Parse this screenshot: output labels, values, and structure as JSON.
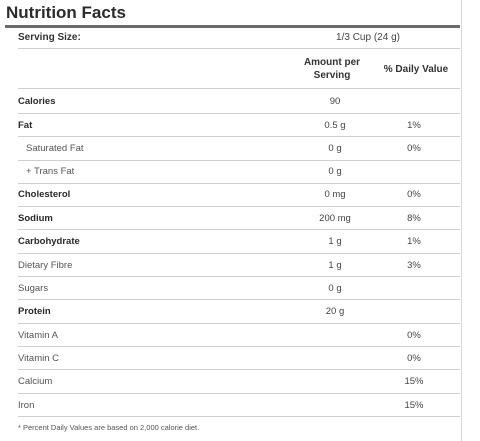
{
  "label": {
    "title": "Nutrition Facts",
    "serving_size_label": "Serving Size:",
    "serving_size_value": "1/3 Cup (24 g)",
    "col_amount_line1": "Amount per",
    "col_amount_line2": "Serving",
    "col_daily": "% Daily Value",
    "footnote": "* Percent Daily Values are based on 2,000 calorie diet."
  },
  "rows": [
    {
      "name": "Calories",
      "amount": "90",
      "dv": ""
    },
    {
      "name": "Fat",
      "amount": "0.5 g",
      "dv": "1%"
    },
    {
      "name": "Saturated Fat",
      "amount": "0 g",
      "dv": "0%"
    },
    {
      "name": "+ Trans Fat",
      "amount": "0 g",
      "dv": ""
    },
    {
      "name": "Cholesterol",
      "amount": "0 mg",
      "dv": "0%"
    },
    {
      "name": "Sodium",
      "amount": "200 mg",
      "dv": "8%"
    },
    {
      "name": "Carbohydrate",
      "amount": "1 g",
      "dv": "1%"
    },
    {
      "name": "Dietary Fibre",
      "amount": "1 g",
      "dv": "3%"
    },
    {
      "name": "Sugars",
      "amount": "0 g",
      "dv": ""
    },
    {
      "name": "Protein",
      "amount": "20 g",
      "dv": ""
    },
    {
      "name": "Vitamin A",
      "amount": "",
      "dv": "0%"
    },
    {
      "name": "Vitamin C",
      "amount": "",
      "dv": "0%"
    },
    {
      "name": "Calcium",
      "amount": "",
      "dv": "15%"
    },
    {
      "name": "Iron",
      "amount": "",
      "dv": "15%"
    }
  ]
}
